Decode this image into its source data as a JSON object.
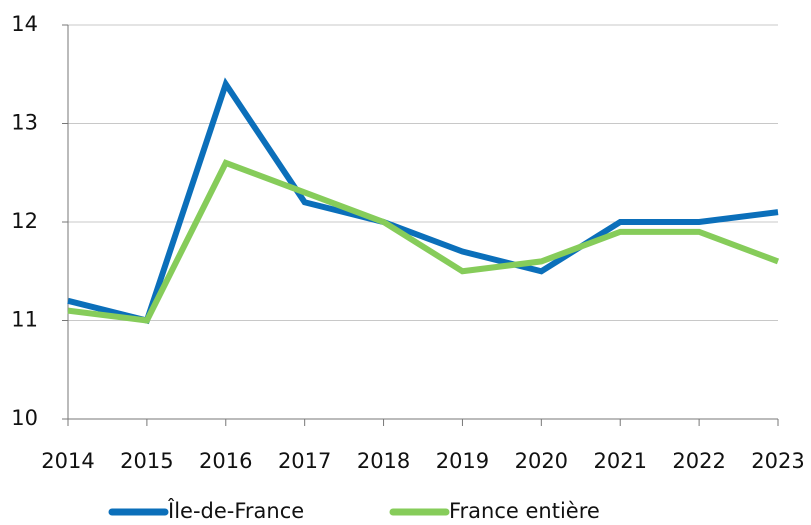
{
  "chart_data": {
    "type": "line",
    "categories": [
      "2014",
      "2015",
      "2016",
      "2017",
      "2018",
      "2019",
      "2020",
      "2021",
      "2022",
      "2023"
    ],
    "series": [
      {
        "name": "Île-de-France",
        "color": "#0b6fba",
        "values": [
          11.2,
          11.0,
          13.4,
          12.2,
          12.0,
          11.7,
          11.5,
          12.0,
          12.0,
          12.1
        ]
      },
      {
        "name": "France entière",
        "color": "#86cc5a",
        "values": [
          11.1,
          11.0,
          12.6,
          12.3,
          12.0,
          11.5,
          11.6,
          11.9,
          11.9,
          11.6
        ]
      }
    ],
    "ylim": [
      10,
      14
    ],
    "yticks": [
      10,
      11,
      12,
      13,
      14
    ],
    "grid": true,
    "legend": "bottom"
  }
}
